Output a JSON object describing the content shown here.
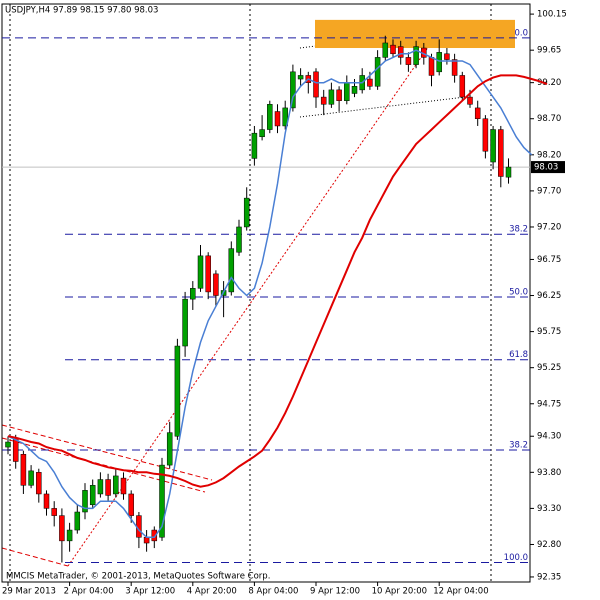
{
  "chart_data": {
    "type": "candlestick",
    "title": "USDJPY,H4  97.89 98.15 97.80 98.03",
    "footer": "MMCIS MetaTrader, © 2001-2013, MetaQuotes Software Corp.",
    "categories": [
      "29 Mar 2013",
      null,
      null,
      null,
      null,
      null,
      null,
      null,
      "2 Apr 04:00",
      null,
      null,
      null,
      null,
      null,
      null,
      null,
      "3 Apr 12:00",
      null,
      null,
      null,
      null,
      null,
      null,
      null,
      "4 Apr 20:00",
      null,
      null,
      null,
      null,
      null,
      null,
      null,
      "8 Apr 04:00",
      null,
      null,
      null,
      null,
      null,
      null,
      null,
      "9 Apr 12:00",
      null,
      null,
      null,
      null,
      null,
      null,
      null,
      "10 Apr 20:00",
      null,
      null,
      null,
      null,
      null,
      null,
      null,
      "12 Apr 04:00",
      null,
      null,
      null,
      null,
      null,
      null,
      null,
      null,
      null,
      null,
      null,
      null,
      null,
      null
    ],
    "open": [
      94.15,
      94.28,
      94.05,
      93.62,
      93.8,
      93.5,
      93.3,
      93.2,
      92.85,
      93.0,
      93.25,
      93.35,
      93.5,
      93.7,
      93.5,
      93.72,
      93.5,
      93.2,
      92.9,
      93.0,
      92.9,
      93.9,
      94.3,
      95.55,
      96.2,
      96.35,
      96.8,
      96.55,
      96.25,
      96.3,
      96.85,
      97.2,
      98.15,
      98.45,
      98.55,
      98.8,
      98.6,
      98.85,
      99.25,
      99.3,
      99.35,
      99.0,
      98.9,
      99.1,
      98.95,
      99.05,
      99.1,
      99.25,
      99.15,
      99.55,
      99.72,
      99.7,
      99.55,
      99.45,
      99.68,
      99.55,
      99.35,
      99.6,
      99.52,
      99.3,
      99.0,
      98.85,
      98.7,
      98.1,
      98.55,
      97.89,
      null,
      null,
      null,
      null,
      null
    ],
    "high": [
      94.3,
      94.32,
      94.1,
      93.9,
      93.85,
      93.55,
      93.4,
      93.3,
      93.1,
      93.35,
      93.65,
      93.7,
      93.8,
      93.78,
      93.85,
      93.8,
      93.55,
      93.25,
      93.0,
      93.05,
      94.0,
      94.5,
      95.65,
      96.3,
      96.45,
      96.95,
      96.85,
      96.6,
      96.45,
      97.0,
      97.3,
      97.75,
      98.6,
      98.75,
      98.95,
      98.9,
      98.95,
      99.45,
      99.4,
      99.35,
      99.4,
      99.1,
      99.2,
      99.15,
      99.3,
      99.25,
      99.4,
      99.35,
      99.65,
      99.85,
      99.8,
      99.78,
      99.62,
      99.78,
      99.75,
      99.6,
      99.8,
      99.68,
      99.6,
      99.35,
      99.1,
      98.95,
      98.75,
      98.6,
      98.6,
      98.15,
      null,
      null,
      null,
      null,
      null
    ],
    "low": [
      94.05,
      93.85,
      93.5,
      93.58,
      93.38,
      93.2,
      93.05,
      92.55,
      92.7,
      92.95,
      93.15,
      93.3,
      93.45,
      93.4,
      93.45,
      93.42,
      93.1,
      92.75,
      92.7,
      92.75,
      92.85,
      93.85,
      94.25,
      95.4,
      96.05,
      96.3,
      96.2,
      96.1,
      95.95,
      96.25,
      96.8,
      97.15,
      98.05,
      98.4,
      98.5,
      98.5,
      98.55,
      98.8,
      99.15,
      99.05,
      98.85,
      98.75,
      98.85,
      98.8,
      98.9,
      99.0,
      99.05,
      99.1,
      99.1,
      99.5,
      99.55,
      99.45,
      99.35,
      99.4,
      99.45,
      99.15,
      99.3,
      99.45,
      99.2,
      98.95,
      98.85,
      98.6,
      98.15,
      98.0,
      97.75,
      97.8,
      null,
      null,
      null,
      null,
      null
    ],
    "close": [
      94.22,
      93.95,
      93.62,
      93.82,
      93.5,
      93.3,
      93.2,
      92.85,
      93.0,
      93.25,
      93.55,
      93.62,
      93.7,
      93.48,
      93.75,
      93.5,
      93.2,
      92.9,
      92.82,
      92.85,
      93.9,
      94.35,
      95.55,
      96.2,
      96.35,
      96.8,
      96.3,
      96.25,
      96.32,
      96.9,
      97.2,
      97.6,
      98.5,
      98.55,
      98.9,
      98.6,
      98.85,
      99.35,
      99.3,
      99.2,
      99.0,
      98.9,
      99.1,
      98.95,
      99.2,
      99.15,
      99.3,
      99.15,
      99.55,
      99.75,
      99.6,
      99.55,
      99.45,
      99.7,
      99.55,
      99.3,
      99.62,
      99.52,
      99.3,
      99.0,
      98.9,
      98.7,
      98.25,
      98.55,
      97.9,
      98.03,
      null,
      null,
      null,
      null,
      null
    ],
    "up_color": "#00a000",
    "down_color": "#ff0000",
    "series": [
      {
        "color": "#4a7fd4",
        "values": [
          94.3,
          94.25,
          94.2,
          94.1,
          94.0,
          93.95,
          93.8,
          93.6,
          93.45,
          93.35,
          93.3,
          93.3,
          93.4,
          93.4,
          93.4,
          93.3,
          93.15,
          93.0,
          92.9,
          92.9,
          93.05,
          93.5,
          94.1,
          94.7,
          95.2,
          95.6,
          95.9,
          96.1,
          96.3,
          96.5,
          96.35,
          96.25,
          96.35,
          96.7,
          97.2,
          97.8,
          98.5,
          99.0,
          99.15,
          99.25,
          99.2,
          99.2,
          99.25,
          99.2,
          99.2,
          99.2,
          99.2,
          99.3,
          99.4,
          99.5,
          99.55,
          99.6,
          99.6,
          99.65,
          99.6,
          99.55,
          99.5,
          99.5,
          99.5,
          99.5,
          99.45,
          99.3,
          99.15,
          99.0,
          98.85,
          98.65,
          98.45,
          98.3,
          98.2,
          null,
          null
        ]
      },
      {
        "color": "#e00000",
        "values": [
          94.3,
          94.28,
          94.25,
          94.22,
          94.2,
          94.15,
          94.12,
          94.1,
          94.05,
          94.0,
          93.97,
          93.93,
          93.9,
          93.87,
          93.85,
          93.83,
          93.82,
          93.8,
          93.8,
          93.78,
          93.77,
          93.75,
          93.72,
          93.68,
          93.63,
          93.6,
          93.62,
          93.66,
          93.72,
          93.8,
          93.88,
          93.95,
          94.02,
          94.1,
          94.25,
          94.42,
          94.62,
          94.85,
          95.1,
          95.35,
          95.6,
          95.85,
          96.1,
          96.35,
          96.6,
          96.85,
          97.05,
          97.3,
          97.5,
          97.7,
          97.9,
          98.05,
          98.2,
          98.35,
          98.45,
          98.55,
          98.65,
          98.75,
          98.85,
          98.95,
          99.05,
          99.15,
          99.22,
          99.27,
          99.3,
          99.3,
          99.3,
          99.28,
          99.25,
          99.22,
          99.18
        ]
      }
    ],
    "fib_levels": [
      {
        "label": "0.0",
        "price": 99.82
      },
      {
        "label": "38.2",
        "price": 97.1
      },
      {
        "label": "50.0",
        "price": 96.23
      },
      {
        "label": "61.8",
        "price": 95.36
      },
      {
        "label": "100.0",
        "price": 92.55
      },
      {
        "label": "38.2",
        "price": 94.11
      }
    ],
    "fib_color": "#1a1aa0",
    "zone": {
      "from": 99.68,
      "to": 100.07,
      "color": "#f5a623"
    },
    "current_price": 98.03,
    "ylim": [
      92.28,
      100.29
    ],
    "yticks": [
      100.15,
      99.65,
      {
        "value": 99.2,
        "label": "99.20"
      },
      {
        "value": 98.7,
        "label": "98.70"
      },
      {
        "value": 98.2,
        "label": "98.20"
      },
      {
        "value": 97.7,
        "label": "97.70"
      },
      {
        "value": 97.2,
        "label": "97.20"
      },
      96.75,
      96.25,
      95.75,
      95.25,
      94.75,
      {
        "value": 94.3,
        "label": "94.30"
      },
      {
        "value": 93.8,
        "label": "93.80"
      },
      {
        "value": 93.3,
        "label": "93.30"
      },
      {
        "value": 92.8,
        "label": "92.80"
      },
      92.35
    ]
  }
}
